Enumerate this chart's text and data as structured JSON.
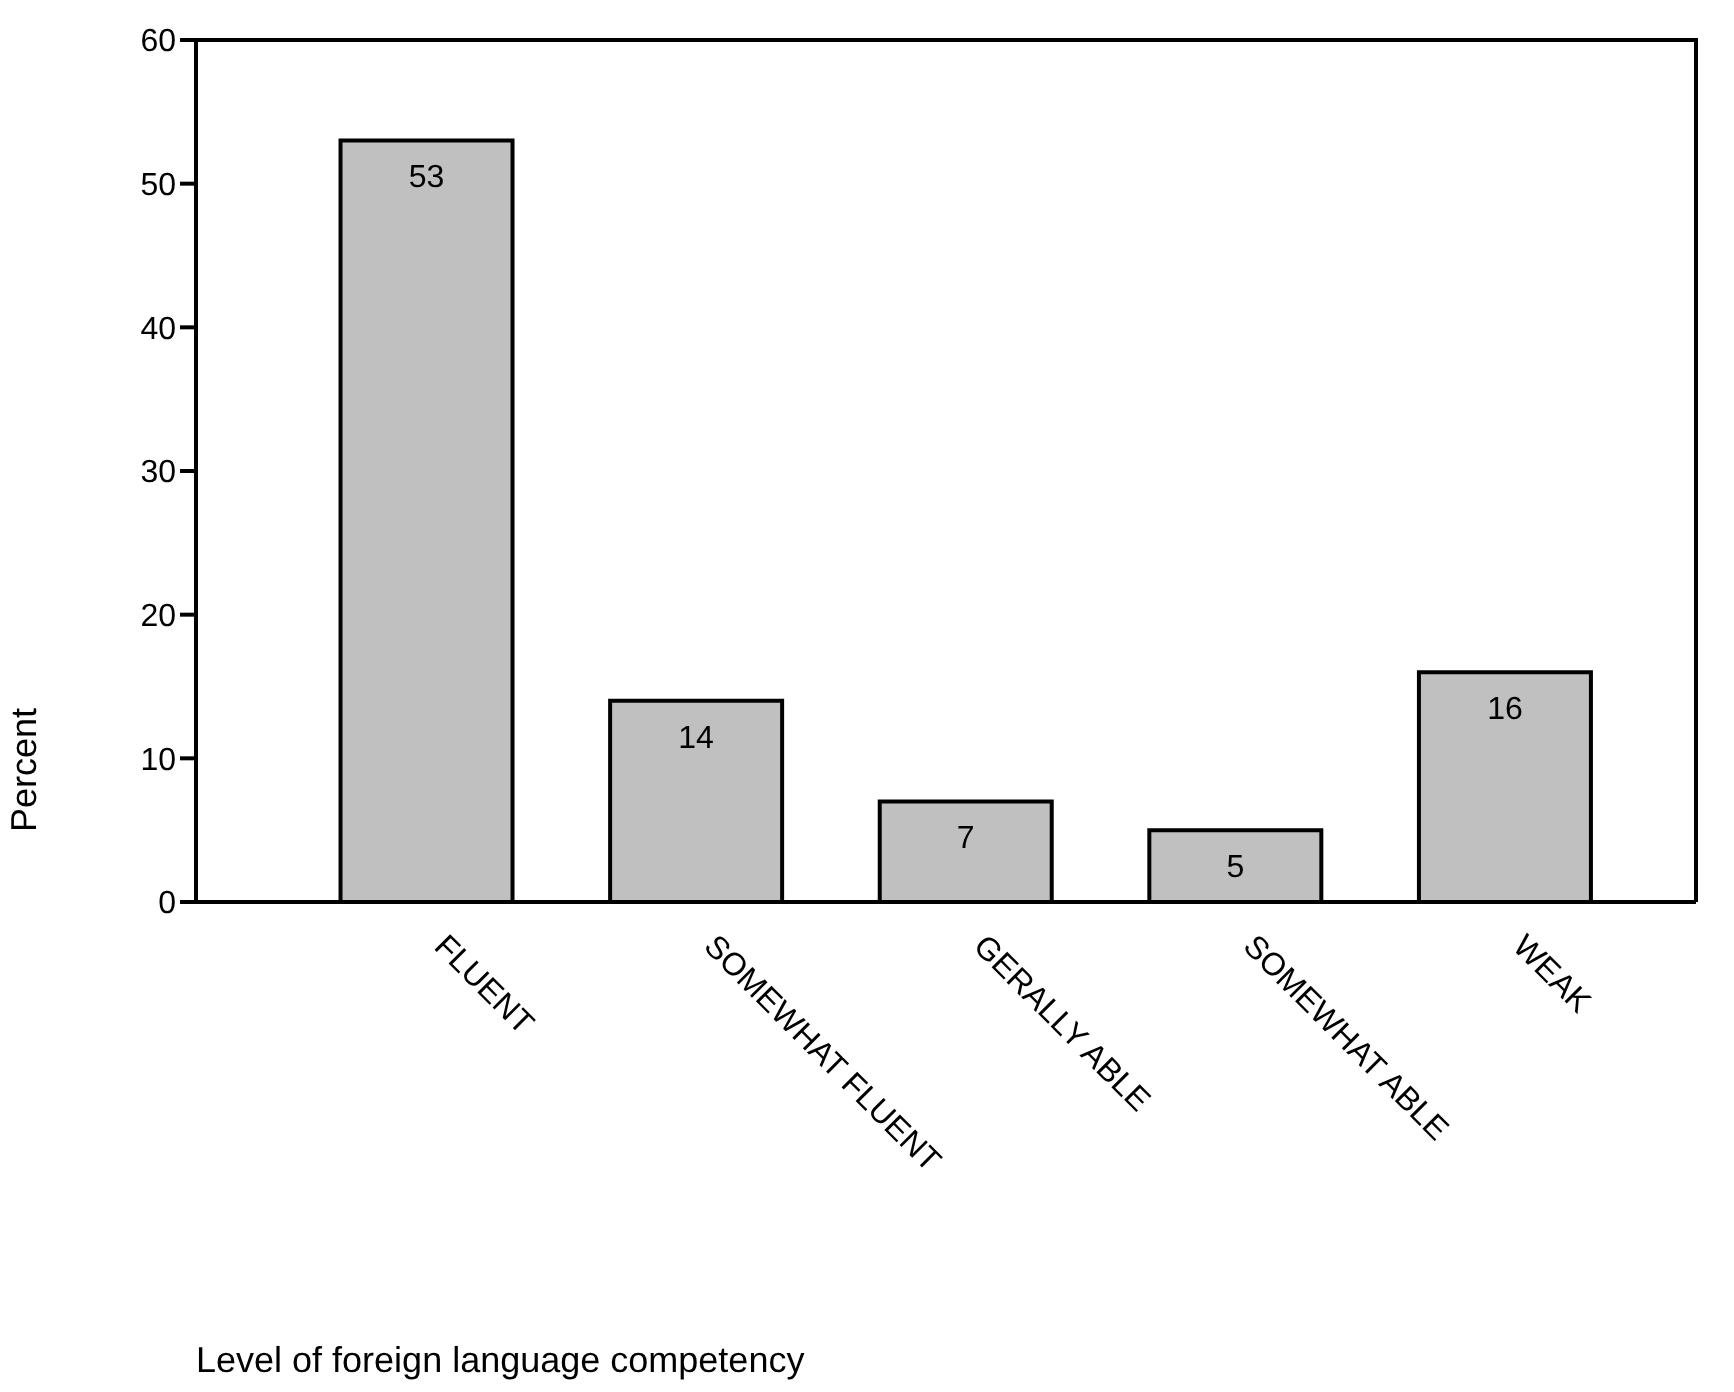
{
  "chart_data": {
    "type": "bar",
    "xlabel": "Level of foreign language competency",
    "ylabel": "Percent",
    "categories": [
      "FLUENT",
      "SOMEWHAT FLUENT",
      "GERALLY ABLE",
      "SOMEWHAT ABLE",
      "WEAK"
    ],
    "values": [
      53,
      14,
      7,
      5,
      16
    ],
    "color": "#c0c0c0",
    "ylim": [
      0,
      60
    ],
    "yticks": [
      0,
      10,
      20,
      30,
      40,
      50,
      60
    ],
    "data_labels": true
  }
}
